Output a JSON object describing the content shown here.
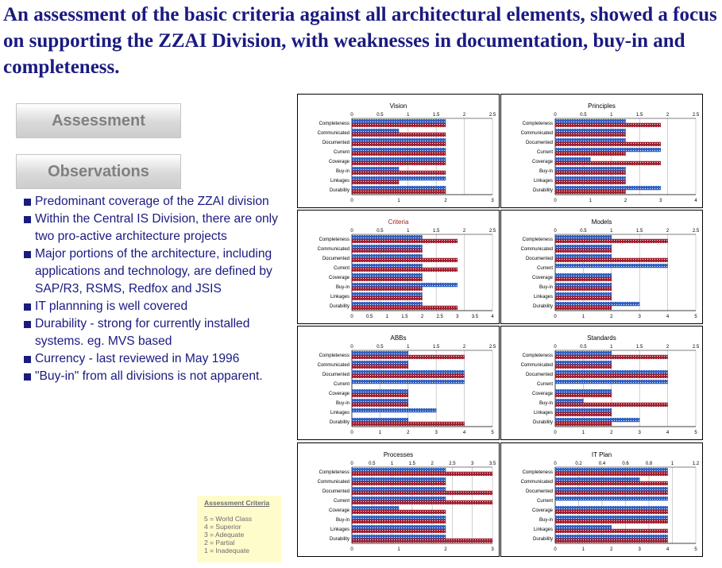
{
  "title": "An assessment of the basic criteria against all architectural elements, showed a focus on supporting the ZZAI Division, with weaknesses in documentation, buy-in and completeness.",
  "buttons": {
    "assessment": "Assessment",
    "observations": "Observations"
  },
  "observations": [
    "Predominant coverage of the ZZAI division",
    "Within the Central IS Division, there are only two pro-active architecture projects",
    "Major portions of the architecture, including applications and technology, are defined by SAP/R3, RSMS, Redfox and JSIS",
    "IT plannning is well covered",
    "Durability - strong for currently installed systems. eg. MVS based",
    "Currency - last reviewed in May 1996",
    "\"Buy-in\" from all divisions is not apparent."
  ],
  "legend": {
    "title": "Assessment Criteria",
    "items": [
      "5 = World Class",
      "4 = Superior",
      "3 = Adequate",
      "2 = Partial",
      "1 = Inadequate"
    ]
  },
  "colors": {
    "blue_series": "#3060c0",
    "red_series": "#a02030",
    "heading": "#1a1a80"
  },
  "chart_data": [
    {
      "type": "bar",
      "title": "Vision",
      "categories": [
        "Completeness",
        "Communicated",
        "Documented",
        "Current",
        "Coverage",
        "Buy-in",
        "Linkages",
        "Durability"
      ],
      "top_axis": {
        "ticks": [
          "0",
          "0.5",
          "1",
          "1.5",
          "2",
          "2.5"
        ],
        "max": 2.5
      },
      "bottom_axis": {
        "ticks": [
          "0",
          "1",
          "2",
          "3"
        ],
        "max": 3
      },
      "series": [
        {
          "values": [
            2,
            1,
            2,
            2,
            2,
            1,
            2,
            2
          ]
        },
        {
          "values": [
            2,
            2,
            2,
            2,
            2,
            2,
            1,
            2
          ]
        }
      ]
    },
    {
      "type": "bar",
      "title": "Principles",
      "categories": [
        "Completeness",
        "Communicated",
        "Documented",
        "Current",
        "Coverage",
        "Buy-in",
        "Linkages",
        "Durability"
      ],
      "top_axis": {
        "ticks": [
          "0",
          "0.5",
          "1",
          "1.5",
          "2",
          "2.5"
        ],
        "max": 2.5
      },
      "bottom_axis": {
        "ticks": [
          "0",
          "1",
          "2",
          "3",
          "4"
        ],
        "max": 4
      },
      "series": [
        {
          "values": [
            2,
            2,
            2,
            3,
            1,
            2,
            2,
            3
          ]
        },
        {
          "values": [
            3,
            2,
            3,
            2,
            3,
            2,
            2,
            2
          ]
        }
      ]
    },
    {
      "type": "bar",
      "title": "Criteria",
      "title_color": "red",
      "categories": [
        "Completeness",
        "Communicated",
        "Documented",
        "Current",
        "Coverage",
        "Buy-in",
        "Linkages",
        "Durability"
      ],
      "top_axis": {
        "ticks": [
          "0",
          "0.5",
          "1",
          "1.5",
          "2",
          "2.5"
        ],
        "max": 2.5
      },
      "bottom_axis": {
        "ticks": [
          "0",
          "0.5",
          "1",
          "1.5",
          "2",
          "2.5",
          "3",
          "3.5",
          "4"
        ],
        "max": 4
      },
      "series": [
        {
          "values": [
            2,
            2,
            2,
            2,
            2,
            3,
            2,
            2
          ]
        },
        {
          "values": [
            3,
            2,
            3,
            3,
            2,
            2,
            2,
            3
          ]
        }
      ]
    },
    {
      "type": "bar",
      "title": "Models",
      "categories": [
        "Completeness",
        "Communicated",
        "Documented",
        "Current",
        "Coverage",
        "Buy-in",
        "Linkages",
        "Durability"
      ],
      "top_axis": {
        "ticks": [
          "0",
          "0.5",
          "1",
          "1.5",
          "2",
          "2.5"
        ],
        "max": 2.5
      },
      "bottom_axis": {
        "ticks": [
          "0",
          "1",
          "2",
          "3",
          "4",
          "5"
        ],
        "max": 5
      },
      "series": [
        {
          "values": [
            2,
            2,
            2,
            4,
            2,
            2,
            2,
            3
          ]
        },
        {
          "values": [
            4,
            2,
            4,
            0,
            2,
            2,
            2,
            2
          ]
        }
      ]
    },
    {
      "type": "bar",
      "title": "ABBs",
      "categories": [
        "Completeness",
        "Communicated",
        "Documented",
        "Current",
        "Coverage",
        "Buy-in",
        "Linkages",
        "Durability"
      ],
      "top_axis": {
        "ticks": [
          "0",
          "0.5",
          "1",
          "1.5",
          "2",
          "2.5"
        ],
        "max": 2.5
      },
      "bottom_axis": {
        "ticks": [
          "0",
          "1",
          "2",
          "3",
          "4",
          "5"
        ],
        "max": 5
      },
      "series": [
        {
          "values": [
            2,
            2,
            4,
            4,
            2,
            2,
            3,
            2
          ]
        },
        {
          "values": [
            4,
            2,
            4,
            0,
            2,
            2,
            0,
            4
          ]
        }
      ]
    },
    {
      "type": "bar",
      "title": "Standards",
      "categories": [
        "Completeness",
        "Communicated",
        "Documented",
        "Current",
        "Coverage",
        "Buy-in",
        "Linkages",
        "Durability"
      ],
      "top_axis": {
        "ticks": [
          "0",
          "0.5",
          "1",
          "1.5",
          "2",
          "2.5"
        ],
        "max": 2.5
      },
      "bottom_axis": {
        "ticks": [
          "0",
          "1",
          "2",
          "3",
          "4",
          "5"
        ],
        "max": 5
      },
      "series": [
        {
          "values": [
            2,
            2,
            4,
            4,
            2,
            1,
            2,
            3
          ]
        },
        {
          "values": [
            4,
            2,
            4,
            0,
            2,
            4,
            2,
            2
          ]
        }
      ]
    },
    {
      "type": "bar",
      "title": "Processes",
      "categories": [
        "Completeness",
        "Communicated",
        "Documented",
        "Current",
        "Coverage",
        "Buy-in",
        "Linkages",
        "Durability"
      ],
      "top_axis": {
        "ticks": [
          "0",
          "0.5",
          "1",
          "1.5",
          "2",
          "2.5",
          "3",
          "3.5"
        ],
        "max": 3.5
      },
      "bottom_axis": {
        "ticks": [
          "0",
          "1",
          "2",
          "3"
        ],
        "max": 3
      },
      "series": [
        {
          "values": [
            2,
            2,
            2,
            2,
            1,
            2,
            2,
            2
          ]
        },
        {
          "values": [
            3,
            2,
            3,
            3,
            2,
            2,
            2,
            3
          ]
        }
      ]
    },
    {
      "type": "bar",
      "title": "IT Plan",
      "categories": [
        "Completeness",
        "Communicated",
        "Documented",
        "Current",
        "Coverage",
        "Buy-in",
        "Linkages",
        "Durability"
      ],
      "top_axis": {
        "ticks": [
          "0",
          "0.2",
          "0.4",
          "0.6",
          "0.8",
          "1",
          "1.2"
        ],
        "max": 1.2
      },
      "bottom_axis": {
        "ticks": [
          "0",
          "1",
          "2",
          "3",
          "4",
          "5"
        ],
        "max": 5
      },
      "series": [
        {
          "values": [
            4,
            3,
            4,
            4,
            4,
            4,
            2,
            4
          ]
        },
        {
          "values": [
            4,
            4,
            4,
            0,
            4,
            4,
            4,
            4
          ]
        }
      ]
    }
  ]
}
